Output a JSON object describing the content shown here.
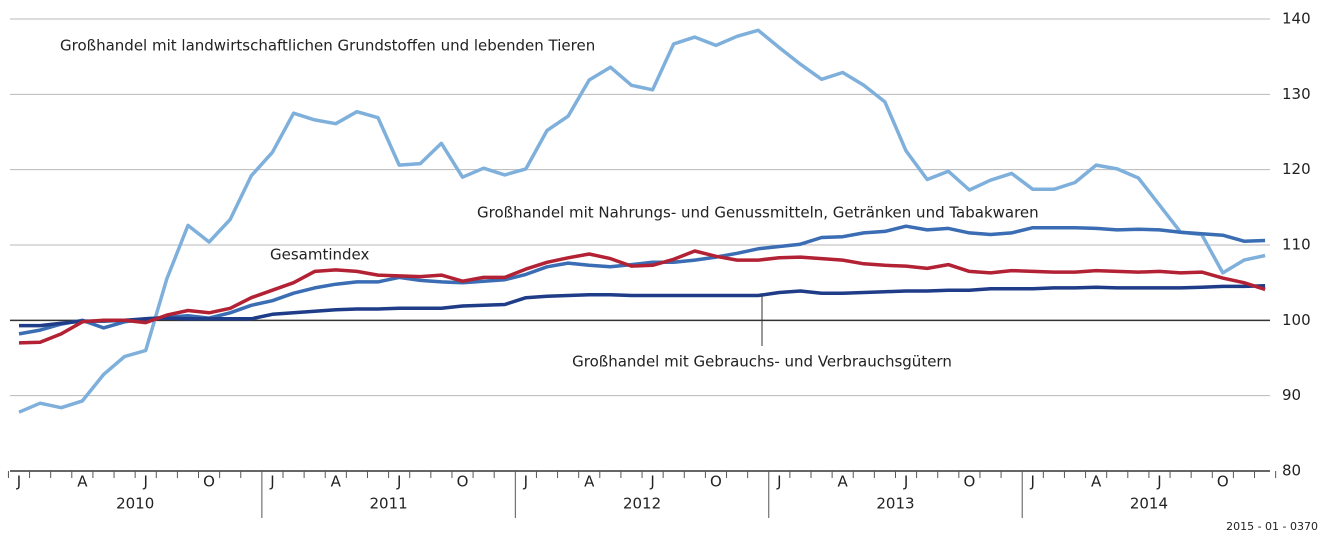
{
  "chart_data": {
    "type": "line",
    "categories": [
      "J",
      null,
      null,
      "A",
      null,
      null,
      "J",
      null,
      null,
      "O",
      null,
      null,
      "J",
      null,
      null,
      "A",
      null,
      null,
      "J",
      null,
      null,
      "O",
      null,
      null,
      "J",
      null,
      null,
      "A",
      null,
      null,
      "J",
      null,
      null,
      "O",
      null,
      null,
      "J",
      null,
      null,
      "A",
      null,
      null,
      "J",
      null,
      null,
      "O",
      null,
      null,
      "J",
      null,
      null,
      "A",
      null,
      null,
      "J",
      null,
      null,
      "O",
      null,
      null
    ],
    "years": [
      "2010",
      "2011",
      "2012",
      "2013",
      "2014"
    ],
    "ylim": [
      80,
      140
    ],
    "yticks": [
      80,
      90,
      100,
      110,
      120,
      130,
      140
    ],
    "grid": true,
    "reference_line": 100,
    "series": [
      {
        "name": "Großhandel mit landwirtschaftlichen Grundstoffen und lebenden Tieren",
        "color": "#7fb0dc",
        "values": [
          87.8,
          89,
          88.4,
          89.3,
          92.8,
          95.2,
          96,
          105.5,
          112.6,
          110.4,
          113.4,
          119.2,
          122.3,
          127.5,
          126.6,
          126.1,
          127.7,
          126.9,
          120.6,
          120.8,
          123.5,
          119,
          120.2,
          119.3,
          120.1,
          125.2,
          127.1,
          131.9,
          133.6,
          131.2,
          130.6,
          136.7,
          137.6,
          136.5,
          137.7,
          138.5,
          136.2,
          134,
          132,
          132.9,
          131.2,
          129,
          122.5,
          118.7,
          119.8,
          117.3,
          118.6,
          119.5,
          117.4,
          117.4,
          118.3,
          120.6,
          120.1,
          118.9,
          115.3,
          111.7,
          111.4,
          106.3,
          108,
          108.6
        ]
      },
      {
        "name": "Großhandel mit Nahrungs- und Genussmitteln, Getränken und Tabakwaren",
        "color": "#3a6db3",
        "values": [
          98.2,
          98.7,
          99.5,
          100,
          99,
          99.8,
          100.2,
          100.4,
          100.6,
          100.3,
          101,
          102,
          102.6,
          103.6,
          104.3,
          104.8,
          105.1,
          105.1,
          105.7,
          105.3,
          105.1,
          105,
          105.2,
          105.4,
          106.1,
          107.1,
          107.6,
          107.3,
          107.1,
          107.4,
          107.7,
          107.7,
          108,
          108.4,
          108.9,
          109.5,
          109.8,
          110.1,
          111,
          111.1,
          111.6,
          111.8,
          112.5,
          112,
          112.2,
          111.6,
          111.4,
          111.6,
          112.3,
          112.3,
          112.3,
          112.2,
          112,
          112.1,
          112,
          111.7,
          111.5,
          111.3,
          110.5,
          110.6
        ]
      },
      {
        "name": "Großhandel mit Gebrauchs- und Verbrauchsgütern",
        "color": "#1f3c88",
        "values": [
          99.3,
          99.3,
          99.6,
          99.9,
          99.9,
          100,
          100.2,
          100.3,
          100.2,
          100.2,
          100.2,
          100.2,
          100.8,
          101,
          101.2,
          101.4,
          101.5,
          101.5,
          101.6,
          101.6,
          101.6,
          101.9,
          102,
          102.1,
          103,
          103.2,
          103.3,
          103.4,
          103.4,
          103.3,
          103.3,
          103.3,
          103.3,
          103.3,
          103.3,
          103.3,
          103.7,
          103.9,
          103.6,
          103.6,
          103.7,
          103.8,
          103.9,
          103.9,
          104,
          104,
          104.2,
          104.2,
          104.2,
          104.3,
          104.3,
          104.4,
          104.3,
          104.3,
          104.3,
          104.3,
          104.4,
          104.5,
          104.5,
          104.6
        ]
      },
      {
        "name": "Gesamtindex",
        "color": "#b22234",
        "values": [
          97,
          97.1,
          98.2,
          99.8,
          100,
          100,
          99.7,
          100.7,
          101.3,
          101,
          101.6,
          103,
          104,
          105,
          106.5,
          106.7,
          106.5,
          106,
          105.9,
          105.8,
          106,
          105.2,
          105.7,
          105.7,
          106.8,
          107.7,
          108.3,
          108.8,
          108.2,
          107.2,
          107.3,
          108.1,
          109.2,
          108.5,
          108,
          108,
          108.3,
          108.4,
          108.2,
          108,
          107.5,
          107.3,
          107.2,
          106.9,
          107.4,
          106.5,
          106.3,
          106.6,
          106.5,
          106.4,
          106.4,
          106.6,
          106.5,
          106.4,
          106.5,
          106.3,
          106.4,
          105.6,
          105,
          104.1
        ]
      }
    ],
    "source_code": "2015 - 01 - 0370"
  }
}
